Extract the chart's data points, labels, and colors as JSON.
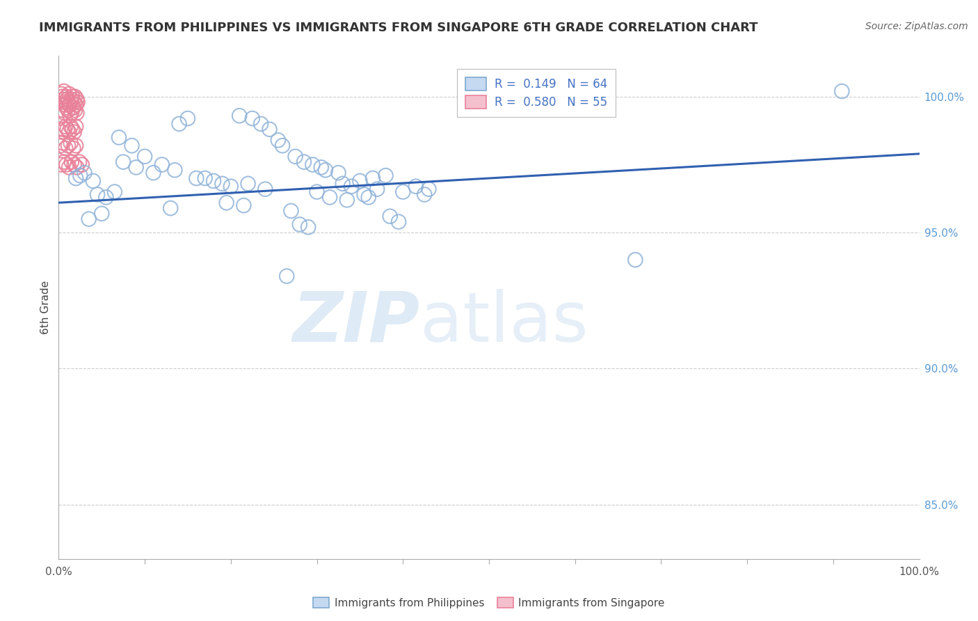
{
  "title": "IMMIGRANTS FROM PHILIPPINES VS IMMIGRANTS FROM SINGAPORE 6TH GRADE CORRELATION CHART",
  "source": "Source: ZipAtlas.com",
  "ylabel": "6th Grade",
  "yticks_right": [
    100.0,
    95.0,
    90.0,
    85.0
  ],
  "xrange": [
    0.0,
    100.0
  ],
  "yrange": [
    83.0,
    101.5
  ],
  "blue_color": "#92B4D9",
  "pink_color": "#E8829A",
  "pink_fill_color": "#F5B8C8",
  "trendline_color": "#3060B0",
  "trendline_start_x": 0.0,
  "trendline_start_y": 96.1,
  "trendline_end_x": 100.0,
  "trendline_end_y": 97.9,
  "blue_x": [
    2.0,
    3.0,
    2.5,
    4.0,
    14.0,
    15.0,
    21.0,
    22.5,
    23.5,
    24.5,
    25.5,
    26.0,
    27.5,
    28.5,
    29.5,
    30.5,
    31.0,
    32.5,
    33.0,
    34.0,
    35.0,
    36.5,
    7.0,
    8.5,
    10.0,
    12.0,
    13.5,
    17.0,
    18.0,
    19.0,
    20.0,
    4.5,
    5.5,
    6.5,
    38.0,
    37.0,
    43.0,
    67.0,
    26.5,
    91.0,
    40.0,
    41.5,
    42.5,
    7.5,
    9.0,
    11.0,
    30.0,
    31.5,
    22.0,
    24.0,
    16.0,
    33.5,
    35.5,
    19.5,
    21.5,
    27.0,
    36.0,
    3.5,
    5.0,
    13.0,
    38.5,
    39.5,
    28.0,
    29.0
  ],
  "blue_y": [
    97.0,
    97.2,
    97.1,
    96.9,
    99.0,
    99.2,
    99.3,
    99.2,
    99.0,
    98.8,
    98.4,
    98.2,
    97.8,
    97.6,
    97.5,
    97.4,
    97.3,
    97.2,
    96.8,
    96.7,
    96.9,
    97.0,
    98.5,
    98.2,
    97.8,
    97.5,
    97.3,
    97.0,
    96.9,
    96.8,
    96.7,
    96.4,
    96.3,
    96.5,
    97.1,
    96.6,
    96.6,
    94.0,
    93.4,
    100.2,
    96.5,
    96.7,
    96.4,
    97.6,
    97.4,
    97.2,
    96.5,
    96.3,
    96.8,
    96.6,
    97.0,
    96.2,
    96.4,
    96.1,
    96.0,
    95.8,
    96.3,
    95.5,
    95.7,
    95.9,
    95.6,
    95.4,
    95.3,
    95.2
  ],
  "pink_x": [
    0.3,
    0.4,
    0.5,
    0.6,
    0.7,
    0.8,
    0.9,
    1.0,
    1.1,
    1.2,
    1.3,
    1.4,
    1.5,
    1.6,
    1.7,
    1.8,
    1.9,
    2.0,
    2.1,
    2.2,
    0.3,
    0.5,
    0.7,
    0.9,
    1.1,
    1.3,
    1.5,
    1.7,
    1.9,
    2.1,
    0.4,
    0.6,
    0.8,
    1.0,
    1.2,
    1.4,
    1.6,
    1.8,
    2.0,
    0.2,
    0.5,
    0.8,
    1.1,
    1.4,
    1.7,
    2.0,
    0.3,
    0.6,
    0.9,
    1.2,
    1.5,
    1.8,
    2.1,
    2.4,
    2.7
  ],
  "pink_y": [
    100.1,
    100.0,
    99.9,
    100.2,
    99.8,
    99.7,
    100.0,
    99.9,
    99.8,
    100.1,
    99.7,
    99.8,
    99.9,
    100.0,
    99.6,
    99.8,
    100.0,
    99.7,
    99.9,
    99.8,
    99.3,
    99.5,
    99.4,
    99.6,
    99.5,
    99.3,
    99.4,
    99.6,
    99.5,
    99.4,
    98.7,
    98.8,
    98.9,
    98.8,
    98.7,
    98.9,
    98.8,
    98.7,
    98.9,
    98.2,
    98.3,
    98.1,
    98.2,
    98.3,
    98.1,
    98.2,
    97.5,
    97.6,
    97.5,
    97.4,
    97.6,
    97.5,
    97.4,
    97.6,
    97.5
  ],
  "watermark_zip": "ZIP",
  "watermark_atlas": "atlas",
  "grid_color": "#CCCCCC",
  "background_color": "#FFFFFF"
}
